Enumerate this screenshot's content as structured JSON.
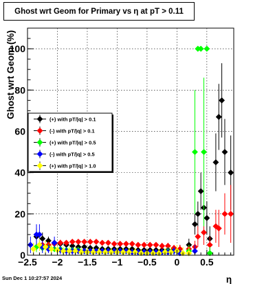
{
  "chart_data": {
    "type": "scatter",
    "title": "Ghost wrt Geom for Primary vs    η at pT > 0.11",
    "xlabel": "η",
    "ylabel": "Ghost wrt Geom (%)",
    "xlim": [
      -2.5,
      0.95
    ],
    "ylim": [
      0,
      110
    ],
    "xticks": [
      -2.5,
      -2,
      -1.5,
      -1,
      -0.5,
      0,
      0.5
    ],
    "xtick_labels": [
      "−2.5",
      "−2",
      "−1.5",
      "−1",
      "−0.5",
      "0",
      "0.5"
    ],
    "yticks": [
      0,
      20,
      40,
      60,
      80,
      100
    ],
    "ytick_labels": [
      "0",
      "20",
      "40",
      "60",
      "80",
      "100"
    ],
    "grid": true,
    "legend_position": "middle-left",
    "series": [
      {
        "name": "(+) with pT/|q| > 0.1",
        "color": "#000000",
        "points": [
          [
            -2.35,
            9.0,
            4.0
          ],
          [
            -2.25,
            8.0,
            3.0
          ],
          [
            -2.15,
            7.0,
            2.0
          ],
          [
            -2.05,
            6.0,
            1.5
          ],
          [
            -1.95,
            5.5,
            1.2
          ],
          [
            -1.85,
            5.0,
            1.2
          ],
          [
            -1.75,
            4.5,
            1.0
          ],
          [
            -1.65,
            4.0,
            1.0
          ],
          [
            -1.55,
            4.0,
            1.0
          ],
          [
            -1.45,
            3.5,
            1.0
          ],
          [
            -1.35,
            3.5,
            1.0
          ],
          [
            -1.25,
            3.0,
            1.0
          ],
          [
            -1.15,
            3.0,
            1.0
          ],
          [
            -1.05,
            3.0,
            1.0
          ],
          [
            -0.95,
            3.0,
            1.0
          ],
          [
            -0.85,
            3.0,
            1.0
          ],
          [
            -0.75,
            3.0,
            1.0
          ],
          [
            -0.65,
            2.5,
            1.0
          ],
          [
            -0.55,
            2.5,
            1.0
          ],
          [
            -0.45,
            2.5,
            1.0
          ],
          [
            -0.35,
            2.5,
            1.0
          ],
          [
            -0.25,
            2.5,
            1.0
          ],
          [
            -0.15,
            2.5,
            1.5
          ],
          [
            -0.05,
            3.0,
            1.5
          ],
          [
            0.05,
            3.0,
            2.0
          ],
          [
            0.2,
            5.0,
            3.0
          ],
          [
            0.3,
            15.0,
            5.0
          ],
          [
            0.35,
            20.0,
            6.0
          ],
          [
            0.4,
            31.0,
            9.0
          ],
          [
            0.45,
            23.0,
            8.0
          ],
          [
            0.5,
            18.0,
            8.0
          ],
          [
            0.55,
            8.0,
            6.0
          ],
          [
            0.65,
            45.0,
            14.0
          ],
          [
            0.7,
            67.0,
            16.0
          ],
          [
            0.75,
            75.0,
            18.0
          ],
          [
            0.8,
            50.0,
            16.0
          ],
          [
            0.9,
            40.0,
            18.0
          ]
        ]
      },
      {
        "name": "(-) with pT/|q| > 0.1",
        "color": "#ff0000",
        "points": [
          [
            -2.35,
            4.0,
            2.0
          ],
          [
            -2.25,
            5.0,
            2.0
          ],
          [
            -2.15,
            5.0,
            1.5
          ],
          [
            -2.05,
            5.5,
            1.5
          ],
          [
            -1.95,
            6.0,
            1.5
          ],
          [
            -1.85,
            6.0,
            1.2
          ],
          [
            -1.75,
            6.5,
            1.2
          ],
          [
            -1.65,
            6.5,
            1.2
          ],
          [
            -1.55,
            6.5,
            1.2
          ],
          [
            -1.45,
            6.5,
            1.2
          ],
          [
            -1.35,
            6.5,
            1.2
          ],
          [
            -1.25,
            6.0,
            1.2
          ],
          [
            -1.15,
            6.0,
            1.2
          ],
          [
            -1.05,
            5.5,
            1.2
          ],
          [
            -0.95,
            5.5,
            1.2
          ],
          [
            -0.85,
            5.5,
            1.2
          ],
          [
            -0.75,
            5.5,
            1.2
          ],
          [
            -0.65,
            5.0,
            1.2
          ],
          [
            -0.55,
            5.0,
            1.2
          ],
          [
            -0.45,
            5.0,
            1.2
          ],
          [
            -0.35,
            5.0,
            1.2
          ],
          [
            -0.25,
            4.5,
            1.5
          ],
          [
            -0.15,
            4.5,
            1.5
          ],
          [
            -0.05,
            3.5,
            1.5
          ],
          [
            0.05,
            3.0,
            2.0
          ],
          [
            0.2,
            3.0,
            2.0
          ],
          [
            0.3,
            4.0,
            3.0
          ],
          [
            0.35,
            9.0,
            5.0
          ],
          [
            0.45,
            11.0,
            6.0
          ],
          [
            0.55,
            5.0,
            4.0
          ],
          [
            0.65,
            14.0,
            8.0
          ],
          [
            0.7,
            13.0,
            9.0
          ],
          [
            0.8,
            20.0,
            10.0
          ],
          [
            0.9,
            20.0,
            14.0
          ]
        ]
      },
      {
        "name": "(+) with pT/|q| > 0.5",
        "color": "#00ff00",
        "points": [
          [
            -2.35,
            4.0,
            2.5
          ],
          [
            -2.25,
            3.5,
            2.0
          ],
          [
            -2.15,
            3.5,
            2.0
          ],
          [
            -2.05,
            3.0,
            1.5
          ],
          [
            -1.95,
            3.0,
            1.5
          ],
          [
            -1.85,
            2.5,
            1.5
          ],
          [
            -1.75,
            2.5,
            1.5
          ],
          [
            -1.65,
            2.5,
            1.5
          ],
          [
            -1.55,
            2.0,
            1.5
          ],
          [
            -1.45,
            2.0,
            1.5
          ],
          [
            -1.35,
            2.0,
            1.5
          ],
          [
            -1.25,
            2.0,
            1.5
          ],
          [
            -1.15,
            2.0,
            1.5
          ],
          [
            -1.05,
            2.0,
            1.5
          ],
          [
            -0.95,
            2.0,
            1.5
          ],
          [
            -0.85,
            2.0,
            1.5
          ],
          [
            -0.75,
            1.5,
            1.5
          ],
          [
            -0.65,
            1.5,
            1.5
          ],
          [
            -0.55,
            1.5,
            1.5
          ],
          [
            -0.45,
            1.5,
            1.5
          ],
          [
            -0.35,
            1.5,
            1.5
          ],
          [
            -0.25,
            1.5,
            1.5
          ],
          [
            -0.15,
            2.0,
            2.0
          ],
          [
            -0.05,
            2.0,
            2.0
          ],
          [
            0.05,
            1.0,
            2.0
          ],
          [
            0.2,
            2.0,
            3.0
          ],
          [
            0.3,
            50.0,
            30.0
          ],
          [
            0.35,
            100.0,
            0.0
          ],
          [
            0.4,
            100.0,
            0.0
          ],
          [
            0.45,
            50.0,
            36.0
          ],
          [
            0.5,
            100.0,
            0.0
          ],
          [
            0.55,
            1.0,
            3.0
          ]
        ]
      },
      {
        "name": "(-) with pT/|q| > 0.5",
        "color": "#0000ff",
        "points": [
          [
            -2.45,
            5.0,
            4.0
          ],
          [
            -2.35,
            10.0,
            5.0
          ],
          [
            -2.3,
            10.0,
            5.0
          ],
          [
            -2.25,
            4.0,
            3.0
          ],
          [
            -2.15,
            3.0,
            2.0
          ],
          [
            -2.05,
            6.0,
            3.0
          ],
          [
            -1.95,
            2.5,
            2.0
          ],
          [
            -1.85,
            2.0,
            2.0
          ],
          [
            -1.75,
            2.0,
            2.0
          ],
          [
            -1.65,
            2.0,
            1.5
          ],
          [
            -1.55,
            2.0,
            1.5
          ],
          [
            -1.45,
            2.0,
            1.5
          ],
          [
            -1.35,
            2.0,
            1.5
          ],
          [
            -1.25,
            2.0,
            1.5
          ],
          [
            -1.15,
            2.0,
            1.5
          ],
          [
            -1.05,
            2.0,
            1.5
          ],
          [
            -0.95,
            2.0,
            1.5
          ],
          [
            -0.85,
            2.0,
            1.5
          ],
          [
            -0.75,
            1.5,
            1.5
          ],
          [
            -0.65,
            1.5,
            1.5
          ],
          [
            -0.55,
            1.5,
            1.5
          ],
          [
            -0.45,
            1.5,
            1.5
          ],
          [
            -0.35,
            1.5,
            1.5
          ],
          [
            -0.25,
            1.5,
            1.5
          ],
          [
            -0.15,
            1.5,
            2.0
          ],
          [
            -0.05,
            2.0,
            2.0
          ],
          [
            0.05,
            1.0,
            2.0
          ],
          [
            0.2,
            1.0,
            2.0
          ],
          [
            0.3,
            2.0,
            3.0
          ]
        ]
      },
      {
        "name": "(+) with pT/|q| > 1.0",
        "color": "#ffff00",
        "points": [
          [
            -2.4,
            3.0,
            3.0
          ],
          [
            -2.3,
            5.0,
            3.0
          ],
          [
            -2.2,
            4.0,
            3.0
          ],
          [
            -2.1,
            3.0,
            2.0
          ],
          [
            -2.0,
            2.5,
            2.0
          ],
          [
            -1.9,
            2.0,
            2.0
          ],
          [
            -1.8,
            2.0,
            2.0
          ],
          [
            -1.7,
            2.0,
            2.0
          ],
          [
            -1.6,
            1.5,
            2.0
          ],
          [
            -1.5,
            1.5,
            2.0
          ],
          [
            -1.4,
            1.5,
            2.0
          ],
          [
            -1.3,
            1.5,
            2.0
          ],
          [
            -1.2,
            1.5,
            2.0
          ],
          [
            -1.1,
            1.5,
            2.0
          ],
          [
            -1.0,
            1.5,
            2.0
          ],
          [
            -0.9,
            1.5,
            2.0
          ],
          [
            -0.8,
            1.5,
            2.0
          ],
          [
            -0.7,
            1.5,
            2.0
          ],
          [
            -0.6,
            1.0,
            2.0
          ],
          [
            -0.5,
            1.0,
            2.0
          ],
          [
            -0.4,
            1.0,
            2.0
          ],
          [
            -0.3,
            1.0,
            2.0
          ],
          [
            -0.2,
            1.5,
            2.0
          ],
          [
            -0.1,
            1.5,
            2.5
          ],
          [
            0.0,
            2.0,
            3.0
          ],
          [
            0.1,
            1.0,
            3.0
          ],
          [
            0.2,
            1.0,
            3.0
          ]
        ]
      }
    ]
  },
  "timestamp": "Sun Dec  1 10:27:57 2024"
}
